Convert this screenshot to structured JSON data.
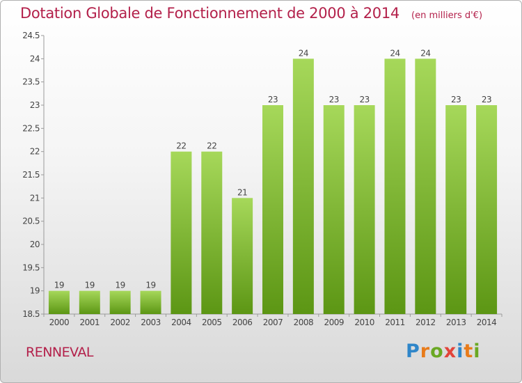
{
  "title": "Dotation Globale de Fonctionnement de 2000 à 2014",
  "unit": "(en milliers d'€)",
  "location": "RENNEVAL",
  "brand": {
    "letters": [
      "P",
      "r",
      "o",
      "x",
      "i",
      "t",
      "i"
    ],
    "colors": [
      "#2f86c9",
      "#e87b1a",
      "#6aa823",
      "#e2443a",
      "#2f86c9",
      "#e87b1a",
      "#6aa823"
    ]
  },
  "colors": {
    "bar_top": "#a6d85a",
    "bar_bottom": "#5c9614",
    "title": "#b3204a"
  },
  "chart_data": {
    "type": "bar",
    "categories": [
      "2000",
      "2001",
      "2002",
      "2003",
      "2004",
      "2005",
      "2006",
      "2007",
      "2008",
      "2009",
      "2010",
      "2011",
      "2012",
      "2013",
      "2014"
    ],
    "values": [
      19,
      19,
      19,
      19,
      22,
      22,
      21,
      23,
      24,
      23,
      23,
      24,
      24,
      23,
      23
    ],
    "value_labels": [
      "19",
      "19",
      "19",
      "19",
      "22",
      "22",
      "21",
      "23",
      "24",
      "23",
      "23",
      "24",
      "24",
      "23",
      "23"
    ],
    "yticks": [
      "18.5",
      "19",
      "19.5",
      "20",
      "20.5",
      "21",
      "21.5",
      "22",
      "22.5",
      "23",
      "23.5",
      "24",
      "24.5"
    ],
    "ylim": [
      18.5,
      24.5
    ],
    "grid": false,
    "legend": "none"
  }
}
